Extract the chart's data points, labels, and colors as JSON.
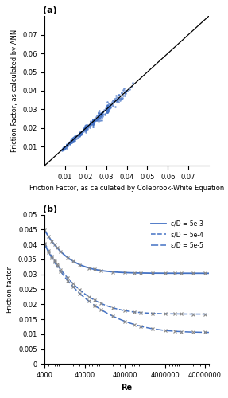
{
  "panel_a": {
    "xlabel": "Friction Factor, as calculated by Colebrook-White Equation",
    "ylabel": "Friction Factor, as calculated by ANN",
    "xlim": [
      0,
      0.08
    ],
    "ylim": [
      0,
      0.08
    ],
    "scatter_color": "#4472C4",
    "line_color": "black",
    "label": "(a)",
    "xlabel_fontsize": 6,
    "ylabel_fontsize": 6,
    "tick_fontsize": 6
  },
  "panel_b": {
    "xlabel": "Re",
    "ylabel": "Friction factor",
    "ylim": [
      0,
      0.05
    ],
    "line_color": "#4472C4",
    "marker_color": "#888888",
    "label": "(b)",
    "roughness": [
      0.005,
      0.0005,
      5e-05
    ],
    "legend_labels": [
      "ε/D = 5e-3",
      "ε/D = 5e-4",
      "ε/D = 5e-5"
    ],
    "xlabel_fontsize": 7,
    "ylabel_fontsize": 6,
    "tick_fontsize": 6
  }
}
